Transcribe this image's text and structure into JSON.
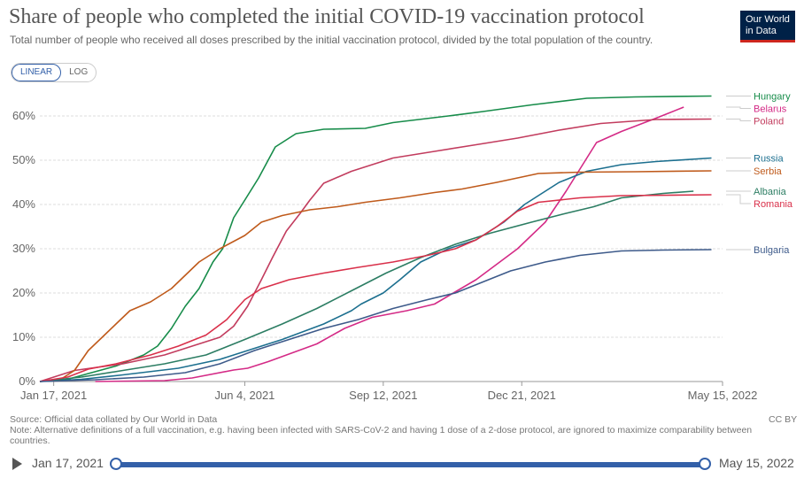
{
  "title": "Share of people who completed the initial COVID-19 vaccination protocol",
  "subtitle": "Total number of people who received all doses prescribed by the initial vaccination protocol, divided by the total population of the country.",
  "logo": {
    "line1": "Our World",
    "line2": "in Data"
  },
  "scale_toggle": {
    "linear": "LINEAR",
    "log": "LOG"
  },
  "footer": {
    "source": "Source: Official data collated by Our World in Data",
    "note": "Note: Alternative definitions of a full vaccination, e.g. having been infected with SARS-CoV-2 and having 1 dose of a 2-dose protocol, are ignored to maximize comparability between countries.",
    "license": "CC BY"
  },
  "timeline": {
    "start": "Jan 17, 2021",
    "end": "May 15, 2022"
  },
  "chart_data": {
    "type": "line",
    "title": "Share of people who completed the initial COVID-19 vaccination protocol",
    "xlabel": "",
    "ylabel": "",
    "x_unit": "days since Jan 17, 2021",
    "xlim": [
      -10,
      483
    ],
    "ylim": [
      0,
      65
    ],
    "yticks": [
      0,
      10,
      20,
      30,
      40,
      50,
      60
    ],
    "ytick_labels": [
      "0%",
      "10%",
      "20%",
      "30%",
      "40%",
      "50%",
      "60%"
    ],
    "xticks": [
      0,
      138,
      238,
      338,
      483
    ],
    "xtick_labels": [
      "Jan 17, 2021",
      "Jun 4, 2021",
      "Sep 12, 2021",
      "Dec 21, 2021",
      "May 15, 2022"
    ],
    "grid": true,
    "series": [
      {
        "name": "Hungary",
        "color": "#178c4a",
        "label_value": 64.5,
        "points": [
          [
            -10,
            0
          ],
          [
            10,
            0.5
          ],
          [
            25,
            1.8
          ],
          [
            45,
            3.5
          ],
          [
            65,
            6
          ],
          [
            75,
            8
          ],
          [
            85,
            12
          ],
          [
            95,
            17
          ],
          [
            105,
            21
          ],
          [
            115,
            27
          ],
          [
            122,
            30
          ],
          [
            130,
            37
          ],
          [
            138,
            41
          ],
          [
            148,
            46
          ],
          [
            160,
            53
          ],
          [
            175,
            56
          ],
          [
            195,
            57
          ],
          [
            225,
            57.2
          ],
          [
            245,
            58.5
          ],
          [
            285,
            60
          ],
          [
            310,
            61
          ],
          [
            345,
            62.5
          ],
          [
            385,
            64
          ],
          [
            420,
            64.3
          ],
          [
            475,
            64.5
          ]
        ]
      },
      {
        "name": "Belarus",
        "color": "#d42a86",
        "label_value": 62,
        "points": [
          [
            30,
            0
          ],
          [
            80,
            0.2
          ],
          [
            100,
            0.8
          ],
          [
            130,
            2.6
          ],
          [
            140,
            3
          ],
          [
            155,
            4.5
          ],
          [
            190,
            8.5
          ],
          [
            210,
            12
          ],
          [
            230,
            14.5
          ],
          [
            255,
            16
          ],
          [
            275,
            17.5
          ],
          [
            305,
            23
          ],
          [
            335,
            30
          ],
          [
            355,
            36
          ],
          [
            370,
            43
          ],
          [
            392,
            54
          ],
          [
            410,
            56.5
          ],
          [
            435,
            59.5
          ],
          [
            455,
            62
          ]
        ]
      },
      {
        "name": "Poland",
        "color": "#c23c5e",
        "label_value": 59.3,
        "points": [
          [
            -10,
            0
          ],
          [
            15,
            2.5
          ],
          [
            50,
            4
          ],
          [
            80,
            6
          ],
          [
            100,
            8
          ],
          [
            120,
            10
          ],
          [
            130,
            12.5
          ],
          [
            140,
            17
          ],
          [
            150,
            23
          ],
          [
            158,
            28
          ],
          [
            168,
            34
          ],
          [
            178,
            38
          ],
          [
            185,
            41
          ],
          [
            195,
            44.8
          ],
          [
            215,
            47.5
          ],
          [
            245,
            50.5
          ],
          [
            275,
            52
          ],
          [
            305,
            53.5
          ],
          [
            335,
            55
          ],
          [
            365,
            56.8
          ],
          [
            395,
            58.3
          ],
          [
            435,
            59.2
          ],
          [
            475,
            59.3
          ]
        ]
      },
      {
        "name": "Russia",
        "color": "#1c6f8f",
        "label_value": 50.5,
        "points": [
          [
            -10,
            0
          ],
          [
            20,
            0.5
          ],
          [
            50,
            1.5
          ],
          [
            90,
            3
          ],
          [
            120,
            5
          ],
          [
            140,
            7
          ],
          [
            165,
            9.5
          ],
          [
            195,
            13
          ],
          [
            215,
            16
          ],
          [
            222,
            17.5
          ],
          [
            238,
            20
          ],
          [
            250,
            23
          ],
          [
            265,
            27
          ],
          [
            285,
            30
          ],
          [
            305,
            32
          ],
          [
            325,
            36
          ],
          [
            340,
            40
          ],
          [
            350,
            42
          ],
          [
            365,
            45
          ],
          [
            385,
            47.5
          ],
          [
            410,
            49
          ],
          [
            435,
            49.7
          ],
          [
            475,
            50.5
          ]
        ]
      },
      {
        "name": "Serbia",
        "color": "#bf5a1b",
        "label_value": 47.6,
        "points": [
          [
            -10,
            0
          ],
          [
            5,
            0.5
          ],
          [
            15,
            2.5
          ],
          [
            25,
            7
          ],
          [
            35,
            10
          ],
          [
            45,
            13
          ],
          [
            55,
            16
          ],
          [
            70,
            18
          ],
          [
            85,
            21
          ],
          [
            95,
            24
          ],
          [
            105,
            27
          ],
          [
            120,
            30
          ],
          [
            138,
            33
          ],
          [
            150,
            36
          ],
          [
            165,
            37.5
          ],
          [
            185,
            38.8
          ],
          [
            205,
            39.5
          ],
          [
            225,
            40.5
          ],
          [
            250,
            41.5
          ],
          [
            275,
            42.7
          ],
          [
            295,
            43.5
          ],
          [
            320,
            45
          ],
          [
            350,
            47
          ],
          [
            380,
            47.3
          ],
          [
            420,
            47.4
          ],
          [
            475,
            47.6
          ]
        ]
      },
      {
        "name": "Albania",
        "color": "#2c7d63",
        "label_value": 43,
        "points": [
          [
            -10,
            0
          ],
          [
            20,
            1
          ],
          [
            50,
            2.5
          ],
          [
            80,
            4
          ],
          [
            110,
            6
          ],
          [
            138,
            9.5
          ],
          [
            165,
            13
          ],
          [
            190,
            16.5
          ],
          [
            215,
            20.5
          ],
          [
            240,
            24.5
          ],
          [
            265,
            28
          ],
          [
            290,
            31
          ],
          [
            315,
            33.5
          ],
          [
            345,
            36
          ],
          [
            370,
            38
          ],
          [
            390,
            39.5
          ],
          [
            410,
            41.5
          ],
          [
            440,
            42.5
          ],
          [
            462,
            43
          ]
        ]
      },
      {
        "name": "Romania",
        "color": "#d9304a",
        "label_value": 42.2,
        "points": [
          [
            -10,
            0
          ],
          [
            10,
            1
          ],
          [
            25,
            2.8
          ],
          [
            45,
            4
          ],
          [
            70,
            6
          ],
          [
            90,
            8
          ],
          [
            110,
            10.5
          ],
          [
            125,
            14
          ],
          [
            138,
            18.5
          ],
          [
            150,
            21
          ],
          [
            170,
            23
          ],
          [
            195,
            24.5
          ],
          [
            220,
            25.8
          ],
          [
            245,
            27
          ],
          [
            270,
            28.5
          ],
          [
            290,
            30
          ],
          [
            305,
            32
          ],
          [
            320,
            35
          ],
          [
            335,
            38.5
          ],
          [
            350,
            40.5
          ],
          [
            380,
            41.5
          ],
          [
            410,
            42
          ],
          [
            475,
            42.2
          ]
        ]
      },
      {
        "name": "Bulgaria",
        "color": "#3d5a8a",
        "label_value": 29.8,
        "points": [
          [
            -10,
            0
          ],
          [
            30,
            0.4
          ],
          [
            65,
            1
          ],
          [
            95,
            2
          ],
          [
            120,
            4
          ],
          [
            145,
            7
          ],
          [
            170,
            9.5
          ],
          [
            195,
            12
          ],
          [
            220,
            14
          ],
          [
            245,
            16.5
          ],
          [
            270,
            18.5
          ],
          [
            290,
            20
          ],
          [
            310,
            22.5
          ],
          [
            330,
            25
          ],
          [
            355,
            27
          ],
          [
            380,
            28.5
          ],
          [
            410,
            29.5
          ],
          [
            440,
            29.7
          ],
          [
            475,
            29.8
          ]
        ]
      }
    ]
  }
}
